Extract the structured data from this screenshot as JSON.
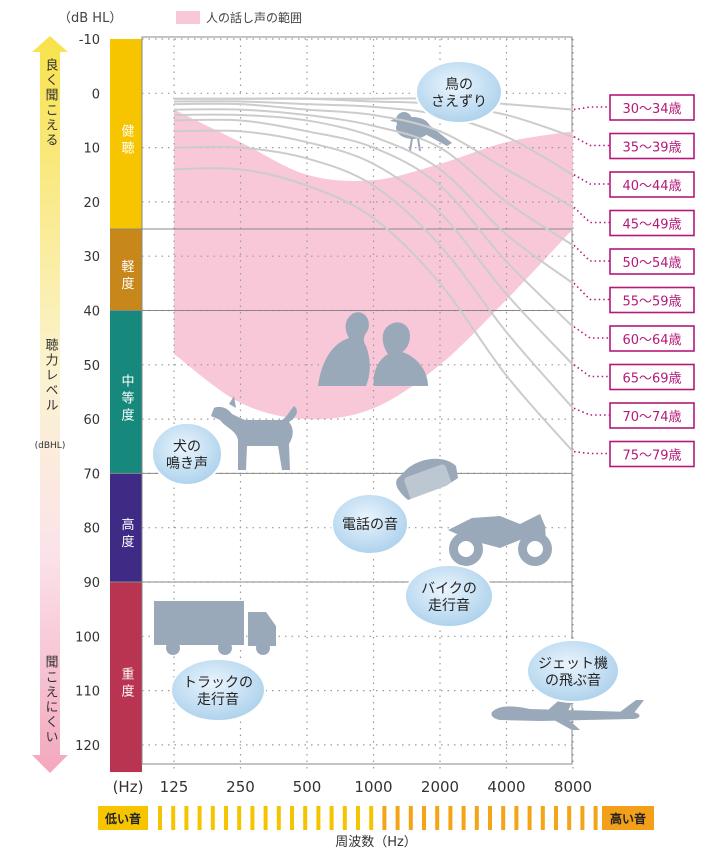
{
  "chart_data": {
    "type": "line",
    "unit_label": "（dB HL）",
    "legend_label": "人の話し声の範囲",
    "y_axis": {
      "title_top": "良く聞こえる",
      "title_mid": "聴力レベル",
      "title_mid_sub": "(dBHL)",
      "title_bottom": "聞こえにくい",
      "ylim": [
        -10,
        125
      ],
      "ticks": [
        -10,
        0,
        10,
        20,
        30,
        40,
        50,
        60,
        70,
        80,
        90,
        100,
        110,
        120
      ]
    },
    "x_axis": {
      "unit": "(Hz)",
      "categories": [
        "125",
        "250",
        "500",
        "1000",
        "2000",
        "4000",
        "8000"
      ],
      "title": "周波数（Hz）",
      "low_label": "低い音",
      "high_label": "高い音"
    },
    "bands": [
      {
        "label": "健聴",
        "from": -10,
        "to": 25,
        "color": "#f6c500"
      },
      {
        "label": "軽度",
        "from": 25,
        "to": 40,
        "color": "#c8871a"
      },
      {
        "label": "中等度",
        "from": 40,
        "to": 70,
        "color": "#16887c"
      },
      {
        "label": "高度",
        "from": 70,
        "to": 90,
        "color": "#3f2a86"
      },
      {
        "label": "重度",
        "from": 90,
        "to": 125,
        "color": "#b83450"
      }
    ],
    "speech_range": {
      "top": [
        [
          125,
          3
        ],
        [
          250,
          9
        ],
        [
          500,
          15
        ],
        [
          1000,
          16
        ],
        [
          2000,
          13
        ],
        [
          4000,
          9
        ],
        [
          8000,
          7
        ]
      ],
      "bottom": [
        [
          125,
          48
        ],
        [
          250,
          57
        ],
        [
          500,
          60
        ],
        [
          1000,
          58
        ],
        [
          2000,
          50
        ],
        [
          4000,
          38
        ],
        [
          8000,
          25
        ]
      ]
    },
    "series": [
      {
        "name": "30〜34歳",
        "values": [
          1,
          1,
          1,
          1,
          1,
          2,
          3
        ]
      },
      {
        "name": "35〜39歳",
        "values": [
          1,
          1,
          1,
          1.5,
          2,
          4,
          8
        ]
      },
      {
        "name": "40〜44歳",
        "values": [
          1.5,
          1.5,
          2,
          2.5,
          4,
          8,
          15
        ]
      },
      {
        "name": "45〜49歳",
        "values": [
          2,
          2,
          3,
          4,
          7,
          14,
          21
        ]
      },
      {
        "name": "50〜54歳",
        "values": [
          3,
          3,
          4,
          6,
          10,
          20,
          28
        ]
      },
      {
        "name": "55〜59歳",
        "values": [
          4,
          4,
          5,
          8,
          14,
          26,
          35
        ]
      },
      {
        "name": "60〜64歳",
        "values": [
          5,
          5,
          7,
          10,
          17,
          31,
          43
        ]
      },
      {
        "name": "65〜69歳",
        "values": [
          7,
          7,
          9,
          13,
          22,
          37,
          50
        ]
      },
      {
        "name": "70〜74歳",
        "values": [
          10,
          10,
          12,
          17,
          28,
          44,
          58
        ]
      },
      {
        "name": "75〜79歳",
        "values": [
          14,
          14,
          17,
          23,
          35,
          52,
          66
        ]
      }
    ],
    "annotations": [
      {
        "text": "鳥の\nさえずり",
        "icon": "bird-icon"
      },
      {
        "text": "犬の\n鳴き声",
        "icon": "dog-icon"
      },
      {
        "text": "電話の音",
        "icon": "telephone-icon"
      },
      {
        "text": "バイクの\n走行音",
        "icon": "motorcycle-icon"
      },
      {
        "text": "トラックの\n走行音",
        "icon": "truck-icon"
      },
      {
        "text": "ジェット機\nの飛ぶ音",
        "icon": "jet-icon"
      }
    ],
    "colors": {
      "speech": "#f8c8d8",
      "curve": "#cccccc",
      "age_label": "#b4197a",
      "bubble": "#b3d6ef",
      "silhouette": "#9aa9b9",
      "grid_dot": "#9a9a9a"
    }
  }
}
